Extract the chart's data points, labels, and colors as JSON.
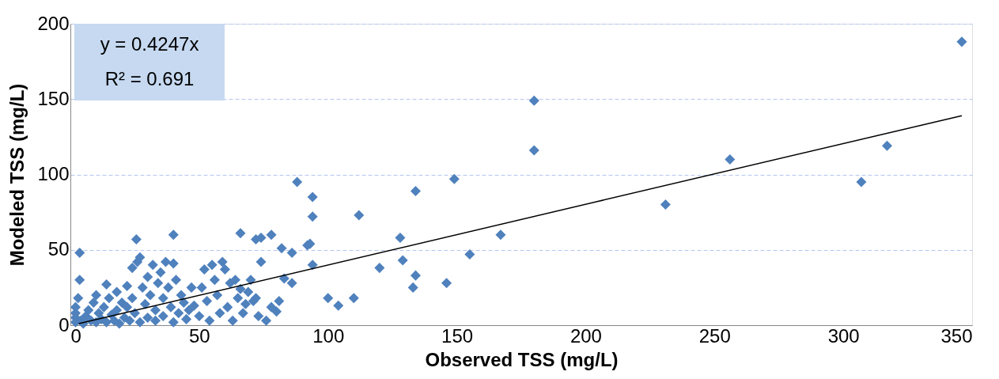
{
  "chart_data": {
    "type": "scatter",
    "xlabel": "Observed TSS (mg/L)",
    "ylabel": "Modeled TSS (mg/L)",
    "annotations": [
      "y = 0.4247x",
      "R² = 0.691"
    ],
    "xlim": [
      0,
      350
    ],
    "xticks": [
      0,
      50,
      100,
      150,
      200,
      250,
      300,
      350
    ],
    "ylim": [
      0,
      200
    ],
    "yticks": [
      0,
      50,
      100,
      150,
      200
    ],
    "grid": "y",
    "series": [
      {
        "marker": "diamond",
        "color": "#4f81bd",
        "x": [
          3.6,
          3.6,
          25.6,
          40,
          66,
          78,
          72,
          74,
          88,
          94,
          94,
          112,
          94,
          82,
          86,
          83,
          86,
          93,
          92,
          100,
          104,
          110,
          120,
          128,
          129,
          134,
          134,
          133,
          146,
          149,
          155,
          167,
          180,
          180,
          231,
          256,
          307,
          317,
          346,
          2,
          2,
          2,
          2,
          3,
          4,
          5,
          6,
          7,
          8,
          9,
          10,
          10,
          11,
          12,
          13,
          14,
          14,
          15,
          16,
          17,
          18,
          18,
          19,
          20,
          21,
          22,
          22,
          23,
          24,
          24,
          25,
          26,
          27,
          27,
          28,
          29,
          30,
          30,
          31,
          32,
          33,
          33,
          34,
          35,
          36,
          36,
          37,
          38,
          39,
          40,
          40,
          41,
          42,
          43,
          44,
          45,
          46,
          47,
          48,
          50,
          51,
          52,
          53,
          54,
          55,
          56,
          57,
          58,
          59,
          60,
          61,
          62,
          63,
          64,
          65,
          66,
          67,
          68,
          69,
          70,
          71,
          72,
          73,
          74,
          76,
          78,
          80,
          81
        ],
        "values": [
          48,
          30,
          57,
          60,
          61,
          60,
          57,
          58,
          95,
          85,
          72,
          73,
          40,
          51,
          48,
          31,
          28,
          54,
          53,
          18,
          13,
          18,
          38,
          58,
          43,
          89,
          33,
          25,
          28,
          97,
          47,
          60,
          149,
          116,
          80,
          110,
          95,
          119,
          188,
          2,
          5,
          8,
          12,
          18,
          3,
          1,
          6,
          10,
          3,
          15,
          2,
          20,
          8,
          4,
          12,
          27,
          2,
          18,
          7,
          3,
          22,
          10,
          1,
          15,
          5,
          26,
          12,
          3,
          18,
          38,
          8,
          42,
          45,
          2,
          25,
          14,
          5,
          32,
          20,
          40,
          10,
          3,
          28,
          35,
          18,
          6,
          42,
          25,
          12,
          41,
          2,
          30,
          8,
          20,
          15,
          4,
          10,
          25,
          13,
          6,
          25,
          37,
          16,
          3,
          40,
          30,
          20,
          8,
          42,
          37,
          12,
          28,
          3,
          30,
          18,
          24,
          8,
          14,
          22,
          30,
          16,
          18,
          6,
          42,
          3,
          12,
          9,
          16
        ]
      },
      {
        "type": "line",
        "color": "#000000",
        "x": [
          3.2,
          346
        ],
        "values": [
          1,
          139
        ]
      }
    ]
  }
}
